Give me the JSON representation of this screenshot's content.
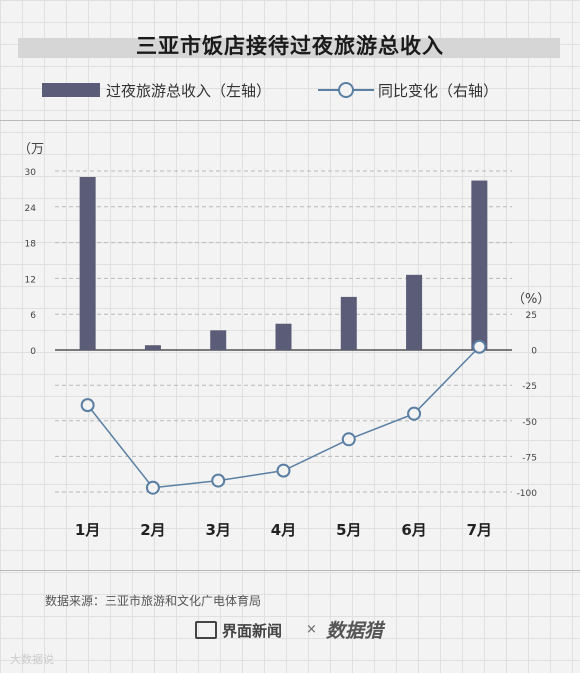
{
  "title": "三亚市饭店接待过夜旅游总收入",
  "legend": {
    "bar_label": "过夜旅游总收入（左轴）",
    "line_label": "同比变化（右轴）"
  },
  "left_unit": "（万",
  "right_unit": "（%）",
  "source": "数据来源：三亚市旅游和文化广电体育局",
  "brand": {
    "name": "界面新闻",
    "separator": "×",
    "partner": "数据猎"
  },
  "watermark": "大数据说",
  "colors": {
    "bar": "#5b5c77",
    "line": "#5a7fa3",
    "grid": "#b9b9b9"
  },
  "chart_data": {
    "type": "bar+line",
    "categories": [
      "1月",
      "2月",
      "3月",
      "4月",
      "5月",
      "6月",
      "7月"
    ],
    "series": [
      {
        "name": "过夜旅游总收入（左轴）",
        "type": "bar",
        "axis": "left",
        "values": [
          29,
          0.8,
          3.3,
          4.4,
          8.9,
          12.6,
          28.4
        ]
      },
      {
        "name": "同比变化（右轴）",
        "type": "line",
        "axis": "right",
        "values": [
          -39,
          -97,
          -92,
          -85,
          -63,
          -45,
          2
        ]
      }
    ],
    "left_axis": {
      "ticks": [
        0,
        6,
        12,
        18,
        24,
        30
      ],
      "ylim": [
        0,
        30
      ]
    },
    "right_axis": {
      "ticks": [
        25,
        0,
        -25,
        -50,
        -75,
        -100
      ],
      "ylim": [
        -100,
        25
      ]
    }
  }
}
